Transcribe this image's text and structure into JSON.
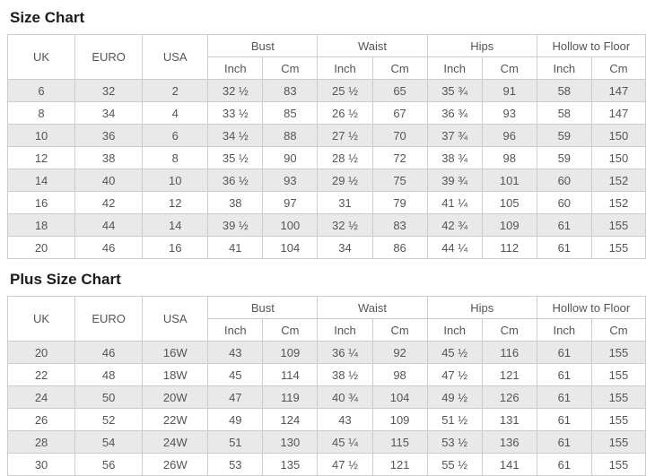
{
  "page": {
    "background": "#ffffff",
    "text_color": "#555555",
    "title_color": "#1b1b1b",
    "border_color": "#cccccc",
    "stripe_color": "#e9e9e9"
  },
  "chart_data": [
    {
      "type": "table",
      "title": "Size Chart",
      "columns": [
        "UK",
        "EURO",
        "USA"
      ],
      "column_groups": [
        {
          "label": "Bust",
          "sub": [
            "Inch",
            "Cm"
          ]
        },
        {
          "label": "Waist",
          "sub": [
            "Inch",
            "Cm"
          ]
        },
        {
          "label": "Hips",
          "sub": [
            "Inch",
            "Cm"
          ]
        },
        {
          "label": "Hollow to Floor",
          "sub": [
            "Inch",
            "Cm"
          ]
        }
      ],
      "rows": [
        [
          "6",
          "32",
          "2",
          "32 ½",
          "83",
          "25 ½",
          "65",
          "35 ¾",
          "91",
          "58",
          "147"
        ],
        [
          "8",
          "34",
          "4",
          "33 ½",
          "85",
          "26 ½",
          "67",
          "36 ¾",
          "93",
          "58",
          "147"
        ],
        [
          "10",
          "36",
          "6",
          "34 ½",
          "88",
          "27 ½",
          "70",
          "37 ¾",
          "96",
          "59",
          "150"
        ],
        [
          "12",
          "38",
          "8",
          "35 ½",
          "90",
          "28 ½",
          "72",
          "38 ¾",
          "98",
          "59",
          "150"
        ],
        [
          "14",
          "40",
          "10",
          "36 ½",
          "93",
          "29 ½",
          "75",
          "39 ¾",
          "101",
          "60",
          "152"
        ],
        [
          "16",
          "42",
          "12",
          "38",
          "97",
          "31",
          "79",
          "41 ¼",
          "105",
          "60",
          "152"
        ],
        [
          "18",
          "44",
          "14",
          "39 ½",
          "100",
          "32 ½",
          "83",
          "42 ¾",
          "109",
          "61",
          "155"
        ],
        [
          "20",
          "46",
          "16",
          "41",
          "104",
          "34",
          "86",
          "44 ¼",
          "112",
          "61",
          "155"
        ]
      ]
    },
    {
      "type": "table",
      "title": "Plus Size Chart",
      "columns": [
        "UK",
        "EURO",
        "USA"
      ],
      "column_groups": [
        {
          "label": "Bust",
          "sub": [
            "Inch",
            "Cm"
          ]
        },
        {
          "label": "Waist",
          "sub": [
            "Inch",
            "Cm"
          ]
        },
        {
          "label": "Hips",
          "sub": [
            "Inch",
            "Cm"
          ]
        },
        {
          "label": "Hollow to Floor",
          "sub": [
            "Inch",
            "Cm"
          ]
        }
      ],
      "rows": [
        [
          "20",
          "46",
          "16W",
          "43",
          "109",
          "36 ¼",
          "92",
          "45 ½",
          "116",
          "61",
          "155"
        ],
        [
          "22",
          "48",
          "18W",
          "45",
          "114",
          "38 ½",
          "98",
          "47 ½",
          "121",
          "61",
          "155"
        ],
        [
          "24",
          "50",
          "20W",
          "47",
          "119",
          "40 ¾",
          "104",
          "49 ½",
          "126",
          "61",
          "155"
        ],
        [
          "26",
          "52",
          "22W",
          "49",
          "124",
          "43",
          "109",
          "51 ½",
          "131",
          "61",
          "155"
        ],
        [
          "28",
          "54",
          "24W",
          "51",
          "130",
          "45 ¼",
          "115",
          "53 ½",
          "136",
          "61",
          "155"
        ],
        [
          "30",
          "56",
          "26W",
          "53",
          "135",
          "47 ½",
          "121",
          "55 ½",
          "141",
          "61",
          "155"
        ]
      ]
    }
  ]
}
